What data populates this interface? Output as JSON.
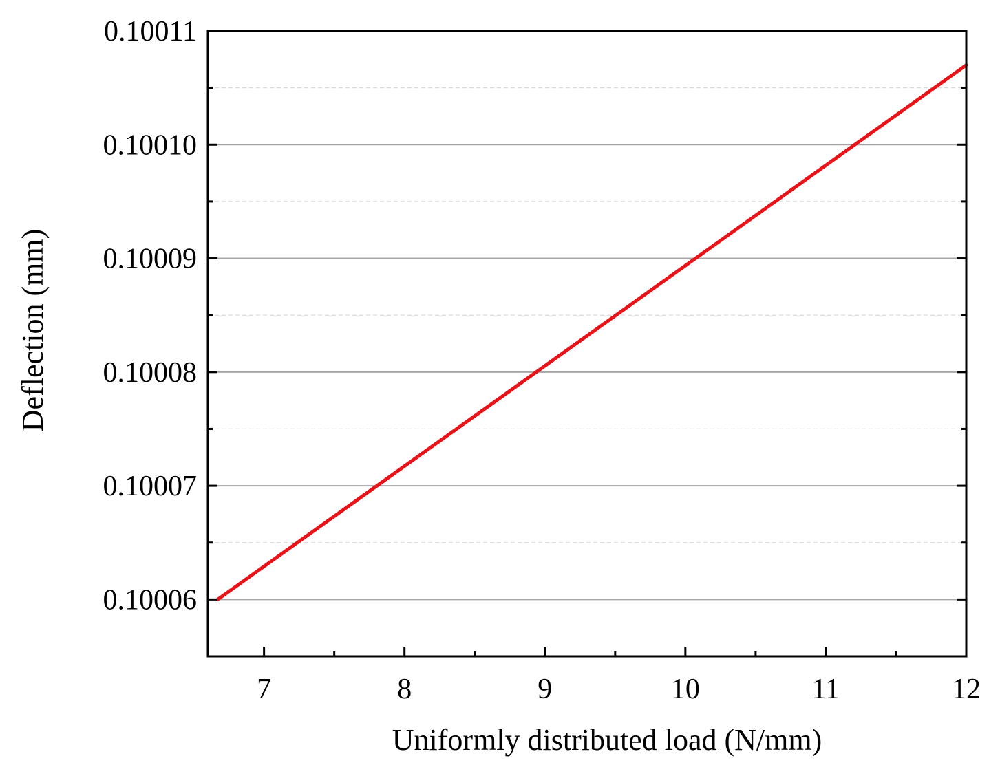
{
  "chart_data": {
    "type": "line",
    "title": "",
    "xlabel": "Uniformly distributed load (N/mm)",
    "ylabel": "Deflection (mm)",
    "xlim": [
      6.6,
      12
    ],
    "ylim": [
      0.100055,
      0.10011
    ],
    "x_ticks": [
      7,
      8,
      9,
      10,
      11,
      12
    ],
    "x_tick_labels": [
      "7",
      "8",
      "9",
      "10",
      "11",
      "12"
    ],
    "y_ticks": [
      0.10006,
      0.10007,
      0.10008,
      0.10009,
      0.1001,
      0.10011
    ],
    "y_tick_labels": [
      "0.10006",
      "0.10007",
      "0.10008",
      "0.10009",
      "0.10010",
      "0.10011"
    ],
    "grid": {
      "major_y": true,
      "minor_y": true,
      "x": false
    },
    "legend": "none",
    "series": [
      {
        "color": "#e8141a",
        "x": [
          6.67,
          12.0
        ],
        "y": [
          0.10006,
          0.100107
        ]
      }
    ],
    "colors": {
      "axis": "#000000",
      "major_grid": "#a6a6a6",
      "minor_grid": "#d9d9d9"
    }
  }
}
